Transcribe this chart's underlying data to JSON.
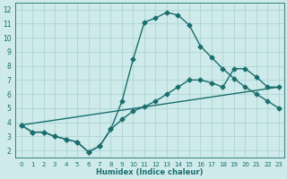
{
  "xlabel": "Humidex (Indice chaleur)",
  "bg_color": "#ceeaea",
  "grid_color": "#aed4d4",
  "line_color": "#1a6e6e",
  "xlim": [
    -0.5,
    23.5
  ],
  "ylim": [
    1.5,
    12.5
  ],
  "xticks": [
    0,
    1,
    2,
    3,
    4,
    5,
    6,
    7,
    8,
    9,
    10,
    11,
    12,
    13,
    14,
    15,
    16,
    17,
    18,
    19,
    20,
    21,
    22,
    23
  ],
  "yticks": [
    2,
    3,
    4,
    5,
    6,
    7,
    8,
    9,
    10,
    11,
    12
  ],
  "line1_x": [
    0,
    1,
    2,
    3,
    4,
    5,
    6,
    7,
    8,
    9,
    10,
    11,
    12,
    13,
    14,
    15,
    16,
    17,
    18,
    19,
    20,
    21,
    22,
    23
  ],
  "line1_y": [
    3.8,
    3.3,
    3.3,
    3.0,
    2.8,
    2.6,
    1.9,
    2.3,
    3.5,
    5.5,
    8.5,
    11.1,
    11.4,
    11.8,
    11.6,
    10.9,
    9.4,
    8.6,
    7.8,
    7.1,
    6.5,
    6.0,
    5.5,
    5.0
  ],
  "line2_x": [
    0,
    23
  ],
  "line2_y": [
    3.8,
    6.5
  ],
  "line3_x": [
    0,
    1,
    2,
    3,
    4,
    5,
    6,
    7,
    8,
    9,
    10,
    11,
    12,
    13,
    14,
    15,
    16,
    17,
    18,
    19,
    20,
    21,
    22,
    23
  ],
  "line3_y": [
    3.8,
    3.3,
    3.3,
    3.0,
    2.8,
    2.6,
    1.9,
    2.3,
    3.5,
    4.2,
    4.8,
    5.1,
    5.5,
    6.0,
    6.5,
    7.0,
    7.0,
    6.8,
    6.5,
    7.8,
    7.8,
    7.2,
    6.5,
    6.5
  ],
  "marker": "D",
  "marker_size": 2.5,
  "line_width": 1.0
}
